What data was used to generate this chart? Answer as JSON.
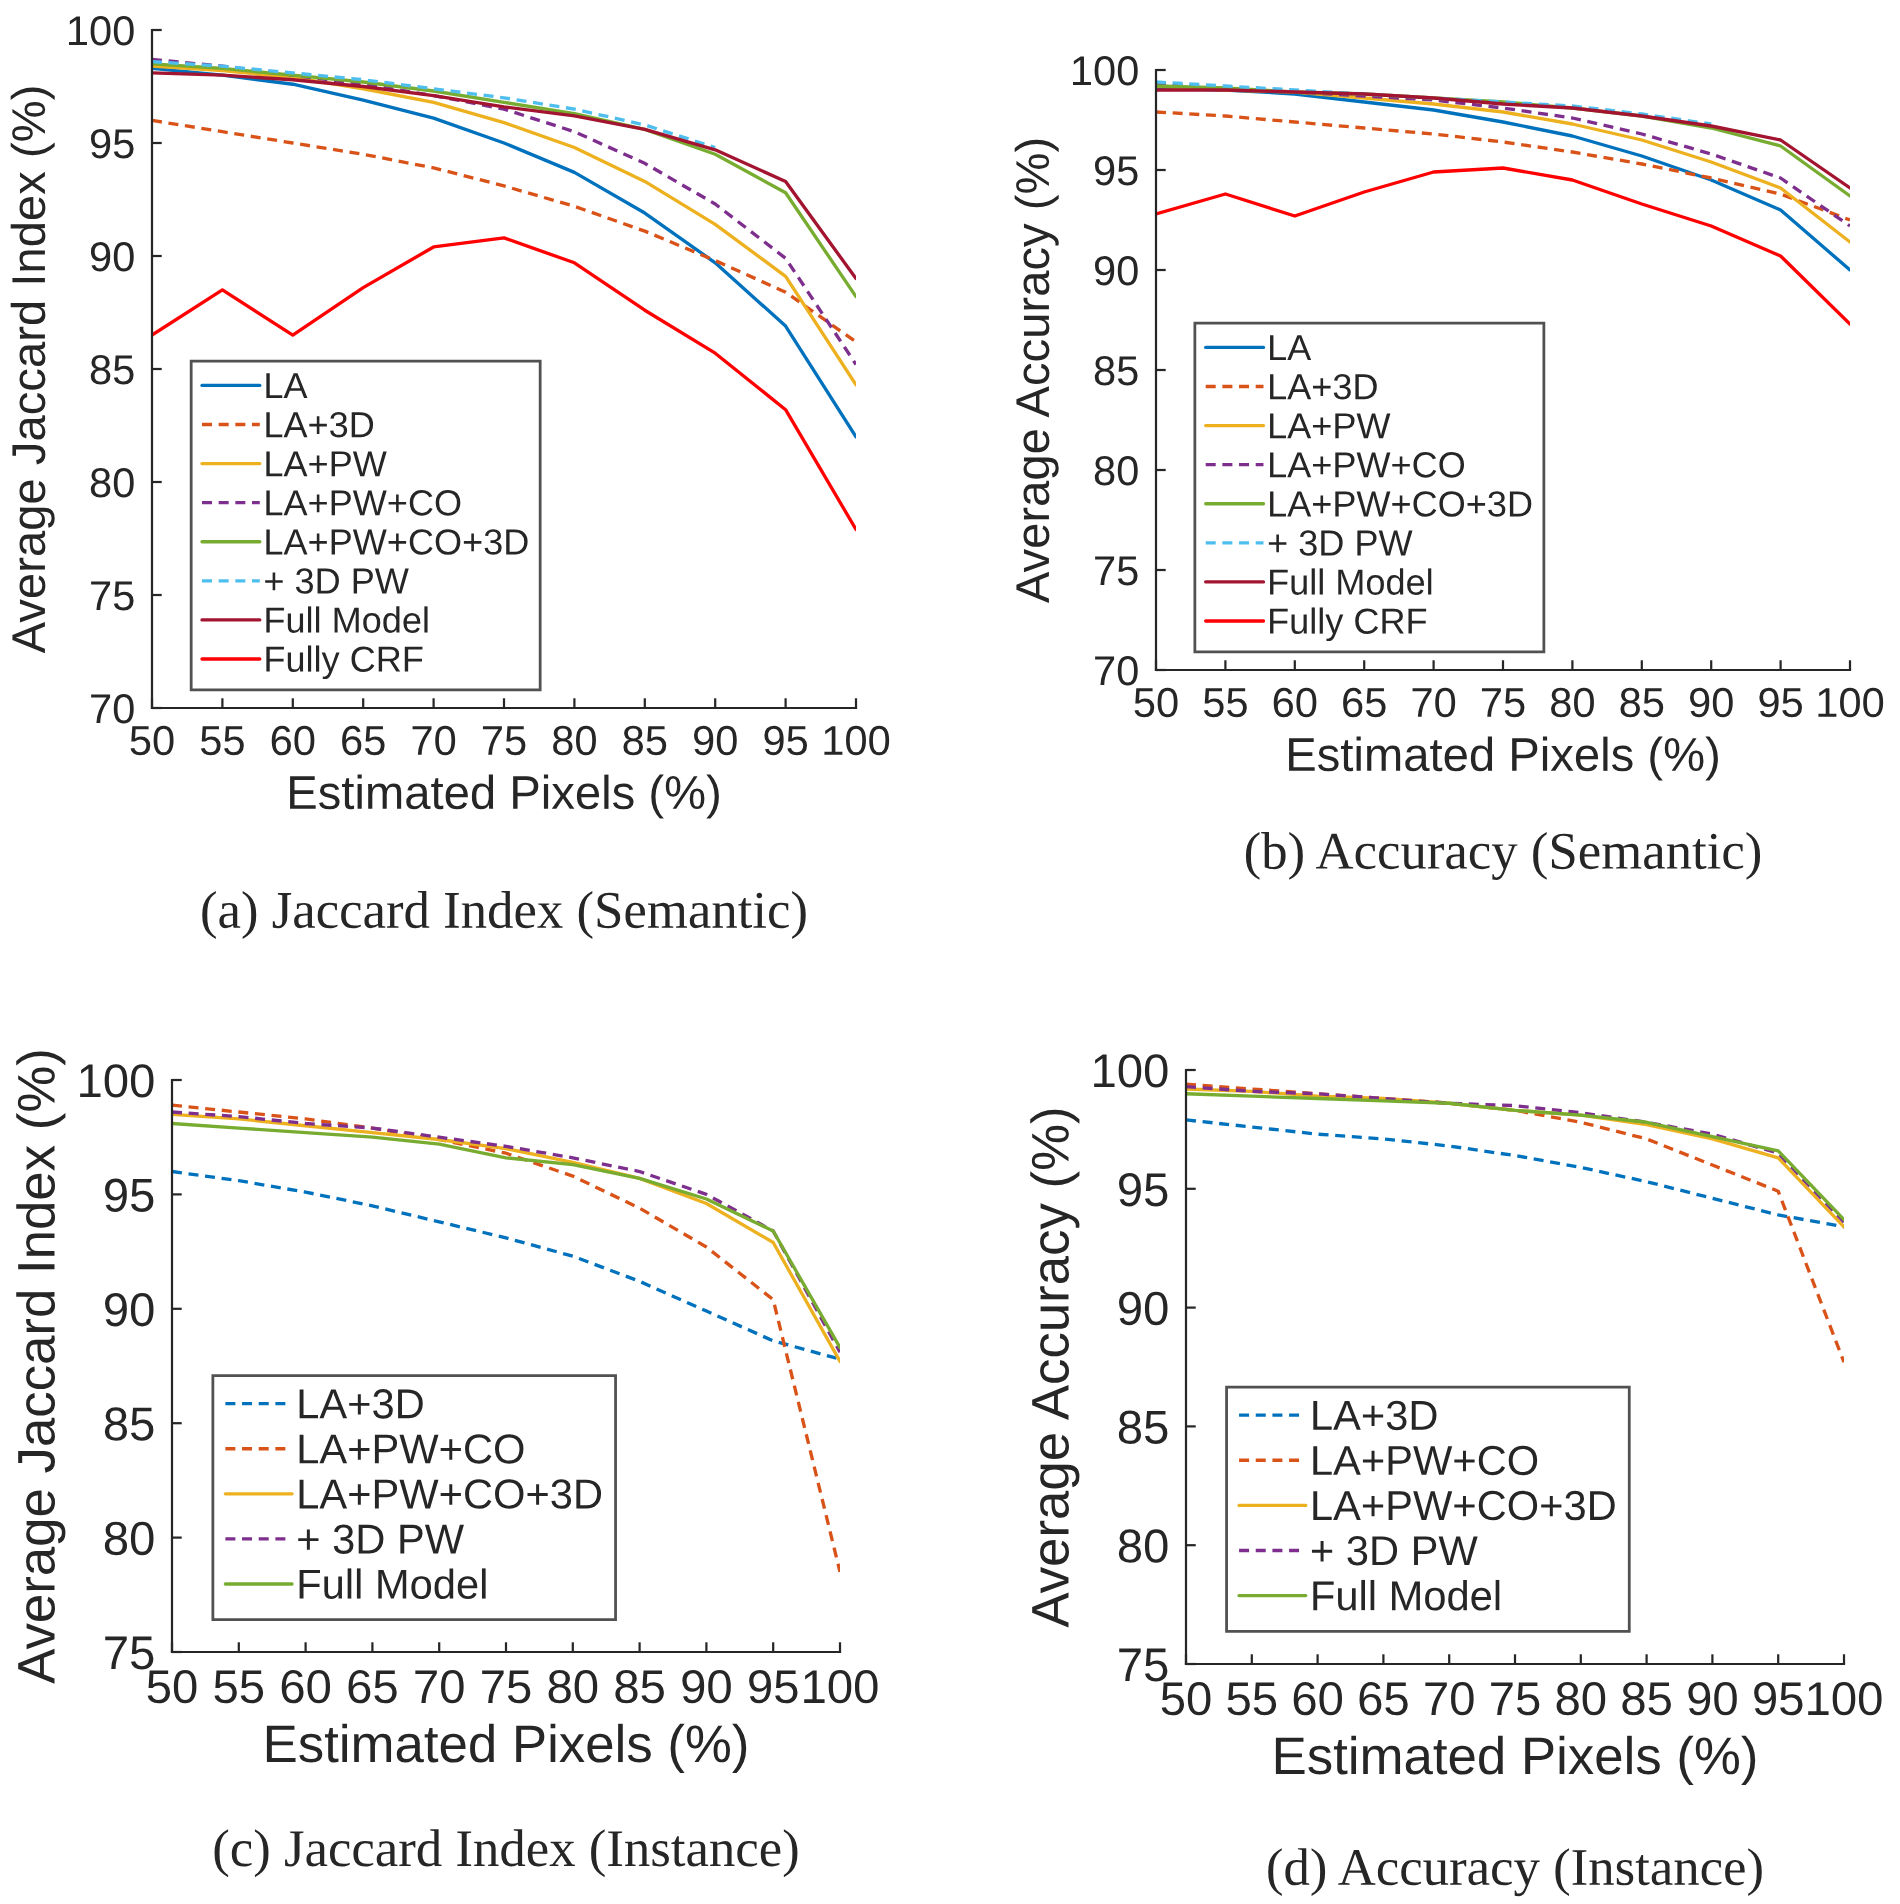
{
  "chart_data": [
    {
      "type": "line",
      "title": "(a) Jaccard Index (Semantic)",
      "xlabel": "Estimated Pixels (%)",
      "ylabel": "Average Jaccard Index (%)",
      "x": [
        50,
        55,
        60,
        65,
        70,
        75,
        80,
        85,
        90,
        95,
        100
      ],
      "xlim": [
        50,
        100
      ],
      "ylim": [
        70,
        100
      ],
      "xticks": [
        50,
        55,
        60,
        65,
        70,
        75,
        80,
        85,
        90,
        95,
        100
      ],
      "yticks": [
        70,
        75,
        80,
        85,
        90,
        95,
        100
      ],
      "legend": "bottom left",
      "grid": false,
      "series": [
        {
          "name": "LA",
          "color": "#0072bd",
          "line_style": "solid",
          "values": [
            98.3,
            98.0,
            97.6,
            96.9,
            96.1,
            95.0,
            93.7,
            91.9,
            89.7,
            86.9,
            82.0
          ]
        },
        {
          "name": "LA+3D",
          "color": "#d95319",
          "line_style": "dashed",
          "values": [
            96.0,
            95.5,
            95.0,
            94.5,
            93.9,
            93.1,
            92.2,
            91.1,
            89.8,
            88.4,
            86.2
          ]
        },
        {
          "name": "LA+PW",
          "color": "#edb120",
          "line_style": "solid",
          "values": [
            98.4,
            98.2,
            97.9,
            97.4,
            96.8,
            95.9,
            94.8,
            93.3,
            91.4,
            89.1,
            84.3
          ]
        },
        {
          "name": "LA+PW+CO",
          "color": "#7e2f8e",
          "line_style": "dashed",
          "values": [
            98.7,
            98.4,
            98.0,
            97.6,
            97.1,
            96.5,
            95.5,
            94.1,
            92.3,
            89.9,
            85.2
          ]
        },
        {
          "name": "LA+PW+CO+3D",
          "color": "#77ac30",
          "line_style": "solid",
          "values": [
            98.5,
            98.3,
            98.0,
            97.7,
            97.3,
            96.8,
            96.3,
            95.6,
            94.5,
            92.8,
            88.2
          ]
        },
        {
          "name": "+ 3D PW",
          "color": "#4dbeee",
          "line_style": "dashed",
          "values": [
            98.6,
            98.4,
            98.1,
            97.8,
            97.4,
            97.0,
            96.5,
            95.8,
            94.8,
            null,
            null
          ]
        },
        {
          "name": "Full Model",
          "color": "#a2142f",
          "line_style": "solid",
          "values": [
            98.1,
            98.0,
            97.8,
            97.5,
            97.1,
            96.6,
            96.2,
            95.6,
            94.7,
            93.3,
            89.0
          ]
        },
        {
          "name": "Fully CRF",
          "color": "#ff0000",
          "line_style": "solid",
          "values": [
            86.5,
            88.5,
            86.5,
            88.6,
            90.4,
            90.8,
            89.7,
            87.6,
            85.7,
            83.2,
            77.9
          ]
        }
      ]
    },
    {
      "type": "line",
      "title": "(b) Accuracy (Semantic)",
      "xlabel": "Estimated Pixels (%)",
      "ylabel": "Average Accuracy (%)",
      "x": [
        50,
        55,
        60,
        65,
        70,
        75,
        80,
        85,
        90,
        95,
        100
      ],
      "xlim": [
        50,
        100
      ],
      "ylim": [
        70,
        100
      ],
      "xticks": [
        50,
        55,
        60,
        65,
        70,
        75,
        80,
        85,
        90,
        95,
        100
      ],
      "yticks": [
        70,
        75,
        80,
        85,
        90,
        95,
        100
      ],
      "legend": "bottom left",
      "grid": false,
      "series": [
        {
          "name": "LA",
          "color": "#0072bd",
          "line_style": "solid",
          "values": [
            99.1,
            99.0,
            98.8,
            98.4,
            98.0,
            97.4,
            96.7,
            95.7,
            94.5,
            93.0,
            90.0
          ]
        },
        {
          "name": "LA+3D",
          "color": "#d95319",
          "line_style": "dashed",
          "values": [
            97.9,
            97.7,
            97.4,
            97.1,
            96.8,
            96.4,
            95.9,
            95.3,
            94.6,
            93.8,
            92.5
          ]
        },
        {
          "name": "LA+PW",
          "color": "#edb120",
          "line_style": "solid",
          "values": [
            99.2,
            99.0,
            98.9,
            98.6,
            98.3,
            97.9,
            97.3,
            96.5,
            95.4,
            94.1,
            91.4
          ]
        },
        {
          "name": "LA+PW+CO",
          "color": "#7e2f8e",
          "line_style": "dashed",
          "values": [
            99.3,
            99.1,
            98.9,
            98.7,
            98.5,
            98.1,
            97.6,
            96.8,
            95.8,
            94.6,
            92.2
          ]
        },
        {
          "name": "LA+PW+CO+3D",
          "color": "#77ac30",
          "line_style": "solid",
          "values": [
            99.2,
            99.1,
            98.9,
            98.8,
            98.6,
            98.4,
            98.1,
            97.7,
            97.1,
            96.2,
            93.7
          ]
        },
        {
          "name": "+ 3D PW",
          "color": "#4dbeee",
          "line_style": "dashed",
          "values": [
            99.4,
            99.2,
            99.0,
            98.8,
            98.6,
            98.4,
            98.2,
            97.8,
            97.3,
            null,
            null
          ]
        },
        {
          "name": "Full Model",
          "color": "#a2142f",
          "line_style": "solid",
          "values": [
            99.0,
            99.0,
            98.9,
            98.8,
            98.6,
            98.3,
            98.1,
            97.7,
            97.2,
            96.5,
            94.1
          ]
        },
        {
          "name": "Fully CRF",
          "color": "#ff0000",
          "line_style": "solid",
          "values": [
            92.8,
            93.8,
            92.7,
            93.9,
            94.9,
            95.1,
            94.5,
            93.3,
            92.2,
            90.7,
            87.3
          ]
        }
      ]
    },
    {
      "type": "line",
      "title": "(c) Jaccard Index (Instance)",
      "xlabel": "Estimated Pixels (%)",
      "ylabel": "Average Jaccard Index (%)",
      "x": [
        50,
        55,
        60,
        65,
        70,
        75,
        80,
        85,
        90,
        95,
        100
      ],
      "xlim": [
        50,
        100
      ],
      "ylim": [
        75,
        100
      ],
      "xticks": [
        50,
        55,
        60,
        65,
        70,
        75,
        80,
        85,
        90,
        95,
        100
      ],
      "yticks": [
        75,
        80,
        85,
        90,
        95,
        100
      ],
      "legend": "bottom left",
      "grid": false,
      "series": [
        {
          "name": "LA+3D",
          "color": "#0072bd",
          "line_style": "dashed",
          "values": [
            96.0,
            95.6,
            95.1,
            94.5,
            93.8,
            93.1,
            92.3,
            91.2,
            89.9,
            88.6,
            87.8
          ]
        },
        {
          "name": "LA+PW+CO",
          "color": "#d95319",
          "line_style": "dashed",
          "values": [
            98.9,
            98.6,
            98.3,
            97.9,
            97.4,
            96.8,
            95.8,
            94.4,
            92.7,
            90.4,
            78.5
          ]
        },
        {
          "name": "LA+PW+CO+3D",
          "color": "#edb120",
          "line_style": "solid",
          "values": [
            98.5,
            98.3,
            98.0,
            97.7,
            97.4,
            97.0,
            96.4,
            95.7,
            94.6,
            92.9,
            87.7
          ]
        },
        {
          "name": "+ 3D PW",
          "color": "#7e2f8e",
          "line_style": "dashed",
          "values": [
            98.6,
            98.4,
            98.1,
            97.9,
            97.5,
            97.1,
            96.6,
            96.0,
            95.0,
            93.4,
            88.1
          ]
        },
        {
          "name": "Full Model",
          "color": "#77ac30",
          "line_style": "solid",
          "values": [
            98.1,
            97.9,
            97.7,
            97.5,
            97.2,
            96.6,
            96.3,
            95.7,
            94.8,
            93.4,
            88.3
          ]
        }
      ]
    },
    {
      "type": "line",
      "title": "(d) Accuracy (Instance)",
      "xlabel": "Estimated Pixels (%)",
      "ylabel": "Average Accuracy (%)",
      "x": [
        50,
        55,
        60,
        65,
        70,
        75,
        80,
        85,
        90,
        95,
        100
      ],
      "xlim": [
        50,
        100
      ],
      "ylim": [
        75,
        100
      ],
      "xticks": [
        50,
        55,
        60,
        65,
        70,
        75,
        80,
        85,
        90,
        95,
        100
      ],
      "yticks": [
        75,
        80,
        85,
        90,
        95,
        100
      ],
      "legend": "bottom left",
      "grid": false,
      "series": [
        {
          "name": "LA+3D",
          "color": "#0072bd",
          "line_style": "dashed",
          "values": [
            97.9,
            97.6,
            97.3,
            97.1,
            96.8,
            96.4,
            95.9,
            95.3,
            94.6,
            93.9,
            93.4
          ]
        },
        {
          "name": "LA+PW+CO",
          "color": "#d95319",
          "line_style": "dashed",
          "values": [
            99.4,
            99.2,
            99.0,
            98.8,
            98.6,
            98.3,
            97.8,
            97.1,
            96.0,
            94.9,
            87.7
          ]
        },
        {
          "name": "LA+PW+CO+3D",
          "color": "#edb120",
          "line_style": "solid",
          "values": [
            99.2,
            99.1,
            98.9,
            98.8,
            98.6,
            98.3,
            98.1,
            97.7,
            97.1,
            96.3,
            93.4
          ]
        },
        {
          "name": "+ 3D PW",
          "color": "#7e2f8e",
          "line_style": "dashed",
          "values": [
            99.3,
            99.1,
            99.0,
            98.8,
            98.6,
            98.5,
            98.2,
            97.8,
            97.3,
            96.5,
            93.6
          ]
        },
        {
          "name": "Full Model",
          "color": "#77ac30",
          "line_style": "solid",
          "values": [
            99.0,
            98.9,
            98.8,
            98.7,
            98.6,
            98.3,
            98.1,
            97.8,
            97.2,
            96.6,
            93.7
          ]
        }
      ]
    }
  ]
}
